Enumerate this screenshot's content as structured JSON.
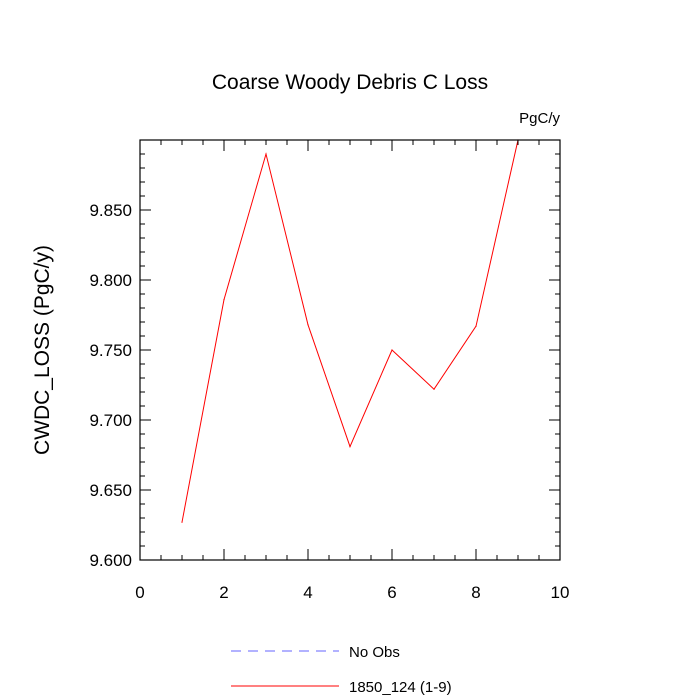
{
  "chart_data": {
    "type": "line",
    "title": "Coarse Woody Debris C Loss",
    "units_label": "PgC/y",
    "ylabel": "CWDC_LOSS  (PgC/y)",
    "xlabel": "",
    "xlim": [
      0,
      10
    ],
    "ylim": [
      9.6,
      9.9
    ],
    "xticks": [
      "0",
      "2",
      "4",
      "6",
      "8",
      "10"
    ],
    "yticks": [
      "9.600",
      "9.650",
      "9.700",
      "9.750",
      "9.800",
      "9.850"
    ],
    "grid": false,
    "legend_position": "bottom",
    "series": [
      {
        "name": "1850_124 (1-9)",
        "color": "#ff0000",
        "style": "solid",
        "x": [
          1,
          2,
          3,
          4,
          5,
          6,
          7,
          8,
          9
        ],
        "y": [
          9.627,
          9.786,
          9.89,
          9.768,
          9.681,
          9.75,
          9.722,
          9.767,
          9.9
        ]
      }
    ],
    "legend": [
      {
        "label": "No Obs",
        "color": "#6666ff",
        "style": "dashed"
      },
      {
        "label": "1850_124 (1-9)",
        "color": "#ff0000",
        "style": "solid"
      }
    ]
  }
}
